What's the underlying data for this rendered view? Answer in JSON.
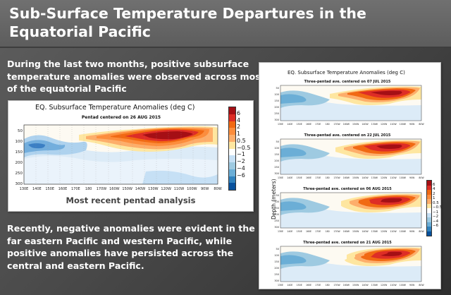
{
  "slide": {
    "title": "Sub-Surface Temperature Departures in the Equatorial Pacific",
    "paragraph_1": "During the last two months, positive subsurface temperature anomalies were observed across most of the equatorial Pacific",
    "paragraph_2": "Recently, negative anomalies were evident in the far eastern Pacific and western Pacific, while positive anomalies have persisted across the central and eastern Pacific.",
    "caption": "Most recent pentad analysis"
  },
  "colorbar": {
    "labels": [
      "6",
      "4",
      "2",
      "1",
      "0.5",
      "−0.5",
      "−1",
      "−2",
      "−4",
      "−6"
    ],
    "colors": [
      "#a50f15",
      "#de2d26",
      "#f16913",
      "#fd8d3c",
      "#fdae6b",
      "#fee6a0",
      "#ffffff",
      "#c6e0f5",
      "#9ecae1",
      "#6baed6",
      "#3182bd",
      "#08519c"
    ]
  },
  "main_plot": {
    "title": "EQ. Subsurface Temperature Anomalies (deg C)",
    "subtitle": "Pentad centered on 26 AUG 2015",
    "y_ticks": [
      "50",
      "100",
      "150",
      "200",
      "250",
      "300"
    ],
    "x_ticks": [
      "130E",
      "140E",
      "150E",
      "160E",
      "170E",
      "180",
      "170W",
      "160W",
      "150W",
      "140W",
      "130W",
      "120W",
      "110W",
      "100W",
      "90W",
      "80W"
    ]
  },
  "side_panel": {
    "title": "EQ. Subsurface Temperature Anomalies (deg C)",
    "y_axis_title": "Depth (meters)",
    "x_ticks": [
      "130E",
      "140E",
      "150E",
      "160E",
      "170E",
      "180",
      "170W",
      "160W",
      "150W",
      "140W",
      "130W",
      "120W",
      "110W",
      "100W",
      "90W",
      "80W"
    ],
    "y_ticks": [
      "50",
      "100",
      "150",
      "200",
      "250",
      "300"
    ],
    "panels": [
      {
        "subtitle": "Three-pentad ave. centered on 07 JUL 2015"
      },
      {
        "subtitle": "Three-pentad ave. centered on 22 JUL 2015"
      },
      {
        "subtitle": "Three-pentad ave. centered on 06 AUG 2015"
      },
      {
        "subtitle": "Three-pentad ave. centered on 21 AUG 2015"
      }
    ]
  }
}
